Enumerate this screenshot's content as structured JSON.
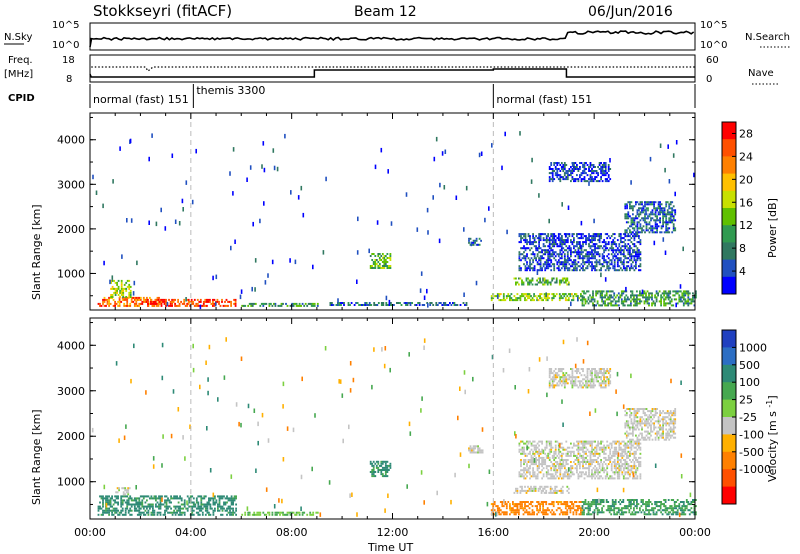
{
  "header": {
    "station": "Stokkseyri (fitACF)",
    "beam": "Beam 12",
    "date": "06/Jun/2016"
  },
  "side_labels": {
    "nsky": "N.Sky",
    "freq_top": "Freq.",
    "freq_unit": "[MHz]",
    "cpid": "CPID",
    "nsearch": "N.Search",
    "nave": "Nave",
    "nsky_ticks": [
      "10^5",
      "10^0"
    ],
    "nsearch_ticks": [
      "10^5",
      "10^0"
    ],
    "freq_ticks": [
      "18",
      "8"
    ],
    "nave_ticks": [
      "60",
      "0"
    ]
  },
  "cpid_segments": [
    {
      "label": "normal (fast) 151",
      "start_hour": 0
    },
    {
      "label": "themis 3300",
      "start_hour": 4.1
    },
    {
      "label": "normal (fast) 151",
      "start_hour": 16
    }
  ],
  "time_axis": {
    "label": "Time UT",
    "ticks": [
      "00:00",
      "04:00",
      "08:00",
      "12:00",
      "16:00",
      "20:00",
      "00:00"
    ]
  },
  "colors": {
    "power": [
      "#0000ff",
      "#2050c0",
      "#307860",
      "#309a50",
      "#60c000",
      "#c8e000",
      "#ffc000",
      "#ff8000",
      "#ff5000",
      "#ff0000"
    ],
    "velocity": [
      "#2040c0",
      "#2c6ec4",
      "#2e8a76",
      "#46a850",
      "#7cd040",
      "#c4c4c4",
      "#ffb000",
      "#ff8000",
      "#ff5000",
      "#ff0000"
    ]
  },
  "chart_data": [
    {
      "type": "heatmap",
      "panel": "power",
      "ylabel": "Slant Range [km]",
      "yticks": [
        "1000",
        "2000",
        "3000",
        "4000"
      ],
      "ylim": [
        180,
        4600
      ],
      "xlabel": "Time UT",
      "colorbar_label": "Power [dB]",
      "colorbar_ticks": [
        "4",
        "8",
        "12",
        "16",
        "20",
        "24",
        "28"
      ],
      "colorbar_range": [
        0,
        30
      ],
      "regions": [
        {
          "t": [
            0.3,
            2.8
          ],
          "r": [
            250,
            450
          ],
          "v": 24
        },
        {
          "t": [
            0.8,
            1.6
          ],
          "r": [
            450,
            850
          ],
          "v": 16
        },
        {
          "t": [
            2.2,
            5.8
          ],
          "r": [
            250,
            420
          ],
          "v": 26
        },
        {
          "t": [
            6.0,
            9.0
          ],
          "r": [
            250,
            330
          ],
          "v": 10
        },
        {
          "t": [
            9.5,
            15.0
          ],
          "r": [
            270,
            320
          ],
          "v": 6
        },
        {
          "t": [
            11.1,
            11.9
          ],
          "r": [
            1100,
            1420
          ],
          "v": 13
        },
        {
          "t": [
            15.0,
            15.5
          ],
          "r": [
            1620,
            1760
          ],
          "v": 6
        },
        {
          "t": [
            15.9,
            19.5
          ],
          "r": [
            380,
            520
          ],
          "v": 14
        },
        {
          "t": [
            16.8,
            19.0
          ],
          "r": [
            730,
            880
          ],
          "v": 12
        },
        {
          "t": [
            17.0,
            21.8
          ],
          "r": [
            1050,
            1900
          ],
          "v": 4
        },
        {
          "t": [
            21.2,
            23.2
          ],
          "r": [
            1900,
            2600
          ],
          "v": 6
        },
        {
          "t": [
            18.2,
            20.6
          ],
          "r": [
            3050,
            3500
          ],
          "v": 4
        },
        {
          "t": [
            19.5,
            24.0
          ],
          "r": [
            260,
            600
          ],
          "v": 10
        }
      ]
    },
    {
      "type": "heatmap",
      "panel": "velocity",
      "ylabel": "Slant Range [km]",
      "yticks": [
        "1000",
        "2000",
        "3000",
        "4000"
      ],
      "ylim": [
        180,
        4600
      ],
      "xlabel": "Time UT",
      "colorbar_label": "Velocity [m s^-1]",
      "colorbar_ticks": [
        "1000",
        "500",
        "100",
        "25",
        "-25",
        "-100",
        "-500",
        "-1000"
      ],
      "regions": [
        {
          "t": [
            0.3,
            5.8
          ],
          "r": [
            250,
            700
          ],
          "v": 150
        },
        {
          "t": [
            1.0,
            1.6
          ],
          "r": [
            700,
            850
          ],
          "v": 0
        },
        {
          "t": [
            6.0,
            9.0
          ],
          "r": [
            250,
            330
          ],
          "v": 60
        },
        {
          "t": [
            11.1,
            11.9
          ],
          "r": [
            1100,
            1420
          ],
          "v": 120
        },
        {
          "t": [
            15.0,
            15.6
          ],
          "r": [
            1620,
            1760
          ],
          "v": 0
        },
        {
          "t": [
            15.9,
            19.5
          ],
          "r": [
            260,
            560
          ],
          "v": -150
        },
        {
          "t": [
            16.8,
            19.0
          ],
          "r": [
            730,
            880
          ],
          "v": 0
        },
        {
          "t": [
            17.0,
            21.8
          ],
          "r": [
            1050,
            1900
          ],
          "v": 0
        },
        {
          "t": [
            21.2,
            23.2
          ],
          "r": [
            1900,
            2600
          ],
          "v": 0
        },
        {
          "t": [
            18.2,
            20.6
          ],
          "r": [
            3050,
            3500
          ],
          "v": 0
        },
        {
          "t": [
            19.5,
            24.0
          ],
          "r": [
            260,
            600
          ],
          "v": 100
        }
      ]
    }
  ]
}
